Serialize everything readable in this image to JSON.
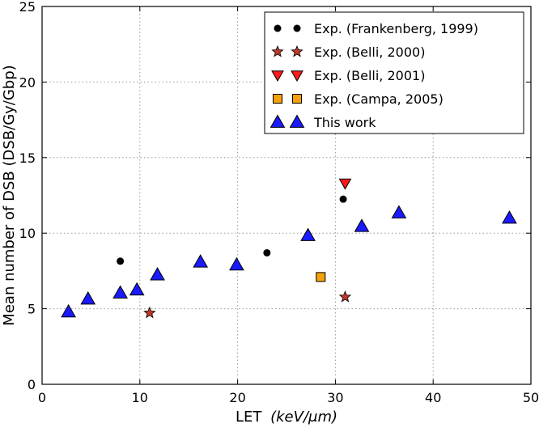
{
  "chart_data": {
    "type": "scatter",
    "xlabel_main": "LET",
    "xlabel_units": "(keV/μm)",
    "ylabel": "Mean number of DSB (DSB/Gy/Gbp)",
    "xlim": [
      0,
      50
    ],
    "ylim": [
      0,
      25
    ],
    "xticks": [
      0,
      10,
      20,
      30,
      40,
      50
    ],
    "yticks": [
      0,
      5,
      10,
      15,
      20,
      25
    ],
    "grid": true,
    "legend_position": "top-right",
    "series": [
      {
        "name": "Exp. (Frankenberg, 1999)",
        "marker": "circle",
        "color": "#000000",
        "x": [
          8.0,
          23.0,
          30.8
        ],
        "y": [
          8.15,
          8.7,
          12.25
        ]
      },
      {
        "name": "Exp. (Belli, 2000)",
        "marker": "star",
        "color": "#c0392b",
        "x": [
          11.0,
          31.0
        ],
        "y": [
          4.72,
          5.78
        ]
      },
      {
        "name": "Exp. (Belli, 2001)",
        "marker": "triangle-down",
        "color": "#ff1a1a",
        "x": [
          31.0
        ],
        "y": [
          13.3
        ]
      },
      {
        "name": "Exp. (Campa, 2005)",
        "marker": "square",
        "color": "#f5a10a",
        "x": [
          28.5
        ],
        "y": [
          7.1
        ]
      },
      {
        "name": "This work",
        "marker": "triangle-up",
        "color": "#1a1aff",
        "x": [
          2.7,
          4.7,
          8.0,
          9.7,
          11.8,
          16.2,
          19.9,
          27.2,
          32.7,
          36.5,
          47.8
        ],
        "y": [
          4.8,
          5.65,
          6.05,
          6.25,
          7.25,
          8.1,
          7.9,
          9.85,
          10.45,
          11.35,
          11.0
        ]
      }
    ]
  }
}
